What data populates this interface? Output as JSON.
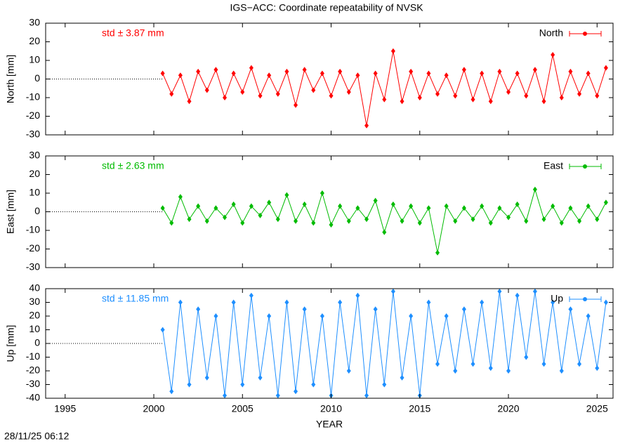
{
  "chart_data": [
    {
      "type": "line",
      "title": "IGS−ACC: Coordinate repeatability of NVSK",
      "ylabel": "North [mm]",
      "annotation": "std ± 3.87 mm",
      "x": [
        2000.5,
        2001,
        2001.5,
        2002,
        2002.5,
        2003,
        2003.5,
        2004,
        2004.5,
        2005,
        2005.5,
        2006,
        2006.5,
        2007,
        2007.5,
        2008,
        2008.5,
        2009,
        2009.5,
        2010,
        2010.5,
        2011,
        2011.5,
        2012,
        2012.5,
        2013,
        2013.5,
        2014,
        2014.5,
        2015,
        2015.5,
        2016,
        2016.5,
        2017,
        2017.5,
        2018,
        2018.5,
        2019,
        2019.5,
        2020,
        2020.5,
        2021,
        2021.5,
        2022,
        2022.5,
        2023,
        2023.5,
        2024,
        2024.5,
        2025,
        2025.5
      ],
      "series": [
        {
          "name": "North",
          "color": "#ff0000",
          "values": [
            3,
            -8,
            2,
            -12,
            4,
            -6,
            5,
            -10,
            3,
            -7,
            6,
            -9,
            2,
            -8,
            4,
            -14,
            5,
            -6,
            3,
            -9,
            4,
            -7,
            2,
            -25,
            3,
            -11,
            15,
            -12,
            4,
            -10,
            3,
            -8,
            2,
            -9,
            5,
            -11,
            3,
            -12,
            4,
            -7,
            3,
            -9,
            5,
            -12,
            13,
            -10,
            4,
            -8,
            3,
            -9,
            6
          ]
        }
      ],
      "xlim": [
        1993.9,
        2025.9
      ],
      "ylim": [
        -30,
        30
      ],
      "yticks": [
        -30,
        -20,
        -10,
        0,
        10,
        20,
        30
      ]
    },
    {
      "type": "line",
      "ylabel": "East [mm]",
      "annotation": "std ± 2.63 mm",
      "x": [
        2000.5,
        2001,
        2001.5,
        2002,
        2002.5,
        2003,
        2003.5,
        2004,
        2004.5,
        2005,
        2005.5,
        2006,
        2006.5,
        2007,
        2007.5,
        2008,
        2008.5,
        2009,
        2009.5,
        2010,
        2010.5,
        2011,
        2011.5,
        2012,
        2012.5,
        2013,
        2013.5,
        2014,
        2014.5,
        2015,
        2015.5,
        2016,
        2016.5,
        2017,
        2017.5,
        2018,
        2018.5,
        2019,
        2019.5,
        2020,
        2020.5,
        2021,
        2021.5,
        2022,
        2022.5,
        2023,
        2023.5,
        2024,
        2024.5,
        2025,
        2025.5
      ],
      "series": [
        {
          "name": "East",
          "color": "#00bb00",
          "values": [
            2,
            -6,
            8,
            -4,
            3,
            -5,
            2,
            -3,
            4,
            -6,
            3,
            -2,
            5,
            -4,
            9,
            -5,
            4,
            -6,
            10,
            -7,
            3,
            -5,
            2,
            -4,
            6,
            -11,
            4,
            -5,
            3,
            -6,
            2,
            -22,
            3,
            -5,
            2,
            -4,
            3,
            -6,
            2,
            -3,
            4,
            -5,
            12,
            -4,
            3,
            -6,
            2,
            -5,
            3,
            -4,
            5
          ]
        }
      ],
      "xlim": [
        1993.9,
        2025.9
      ],
      "ylim": [
        -30,
        30
      ],
      "yticks": [
        -30,
        -20,
        -10,
        0,
        10,
        20,
        30
      ]
    },
    {
      "type": "line",
      "ylabel": "Up [mm]",
      "annotation": "std ± 11.85 mm",
      "xlabel": "YEAR",
      "x": [
        2000.5,
        2001,
        2001.5,
        2002,
        2002.5,
        2003,
        2003.5,
        2004,
        2004.5,
        2005,
        2005.5,
        2006,
        2006.5,
        2007,
        2007.5,
        2008,
        2008.5,
        2009,
        2009.5,
        2010,
        2010.5,
        2011,
        2011.5,
        2012,
        2012.5,
        2013,
        2013.5,
        2014,
        2014.5,
        2015,
        2015.5,
        2016,
        2016.5,
        2017,
        2017.5,
        2018,
        2018.5,
        2019,
        2019.5,
        2020,
        2020.5,
        2021,
        2021.5,
        2022,
        2022.5,
        2023,
        2023.5,
        2024,
        2024.5,
        2025,
        2025.5
      ],
      "series": [
        {
          "name": "Up",
          "color": "#1e8fff",
          "values": [
            10,
            -35,
            30,
            -30,
            25,
            -25,
            20,
            -38,
            30,
            -30,
            35,
            -25,
            20,
            -38,
            30,
            -35,
            25,
            -30,
            20,
            -38,
            30,
            -20,
            35,
            -38,
            25,
            -30,
            38,
            -25,
            20,
            -38,
            30,
            -15,
            20,
            -20,
            25,
            -15,
            30,
            -18,
            38,
            -20,
            35,
            -10,
            38,
            -15,
            30,
            -20,
            25,
            -15,
            20,
            -18,
            30
          ]
        }
      ],
      "xlim": [
        1993.9,
        2025.9
      ],
      "ylim": [
        -40,
        40
      ],
      "yticks": [
        -40,
        -30,
        -20,
        -10,
        0,
        10,
        20,
        30,
        40
      ],
      "xticks": [
        1995,
        2000,
        2005,
        2010,
        2015,
        2020,
        2025
      ]
    }
  ],
  "footer": "28/11/25 06:12"
}
